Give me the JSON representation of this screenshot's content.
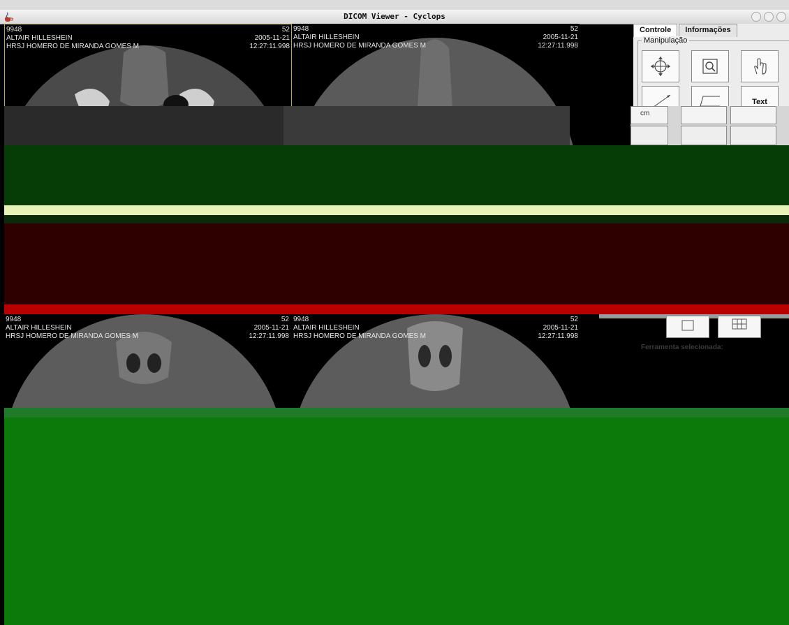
{
  "window": {
    "title": "DICOM Viewer - Cyclops",
    "app_icon": "java-cup-icon"
  },
  "viewports": [
    {
      "id": "9948",
      "patient": "ALTAIR HILLESHEIN",
      "institution": "HRSJ HOMERO DE MIRANDA GOMES M",
      "series": "52",
      "date": "2005-11-21",
      "time": "12:27:11.998"
    },
    {
      "id": "9948",
      "patient": "ALTAIR HILLESHEIN",
      "institution": "HRSJ HOMERO DE MIRANDA GOMES M",
      "series": "52",
      "date": "2005-11-21",
      "time": "12:27:11.998"
    },
    {
      "id": "9948",
      "patient": "ALTAIR HILLESHEIN",
      "institution": "HRSJ HOMERO DE MIRANDA GOMES M",
      "series": "52",
      "date": "2005-11-21",
      "time": "12:27:11.998"
    },
    {
      "id": "9948",
      "patient": "ALTAIR HILLESHEIN",
      "institution": "HRSJ HOMERO DE MIRANDA GOMES M",
      "series": "52",
      "date": "2005-11-21",
      "time": "12:27:11.998"
    }
  ],
  "panel": {
    "tabs": [
      "Controle",
      "Informações"
    ],
    "group_label": "Manipulação",
    "tools": [
      "pan-icon",
      "zoom-icon",
      "hand-icon",
      "ruler-icon",
      "angle-icon",
      "text-tool"
    ],
    "text_tool_label": "Text",
    "ruler_unit": "cm",
    "selected_tool_label": "Ferramenta selecionada:"
  },
  "colors": {
    "corruption_dark_green": "#063d06",
    "corruption_maroon": "#2f0000",
    "corruption_red": "#b80000",
    "corruption_green": "#0b7a0b",
    "corruption_light": "#e6f2b8"
  }
}
